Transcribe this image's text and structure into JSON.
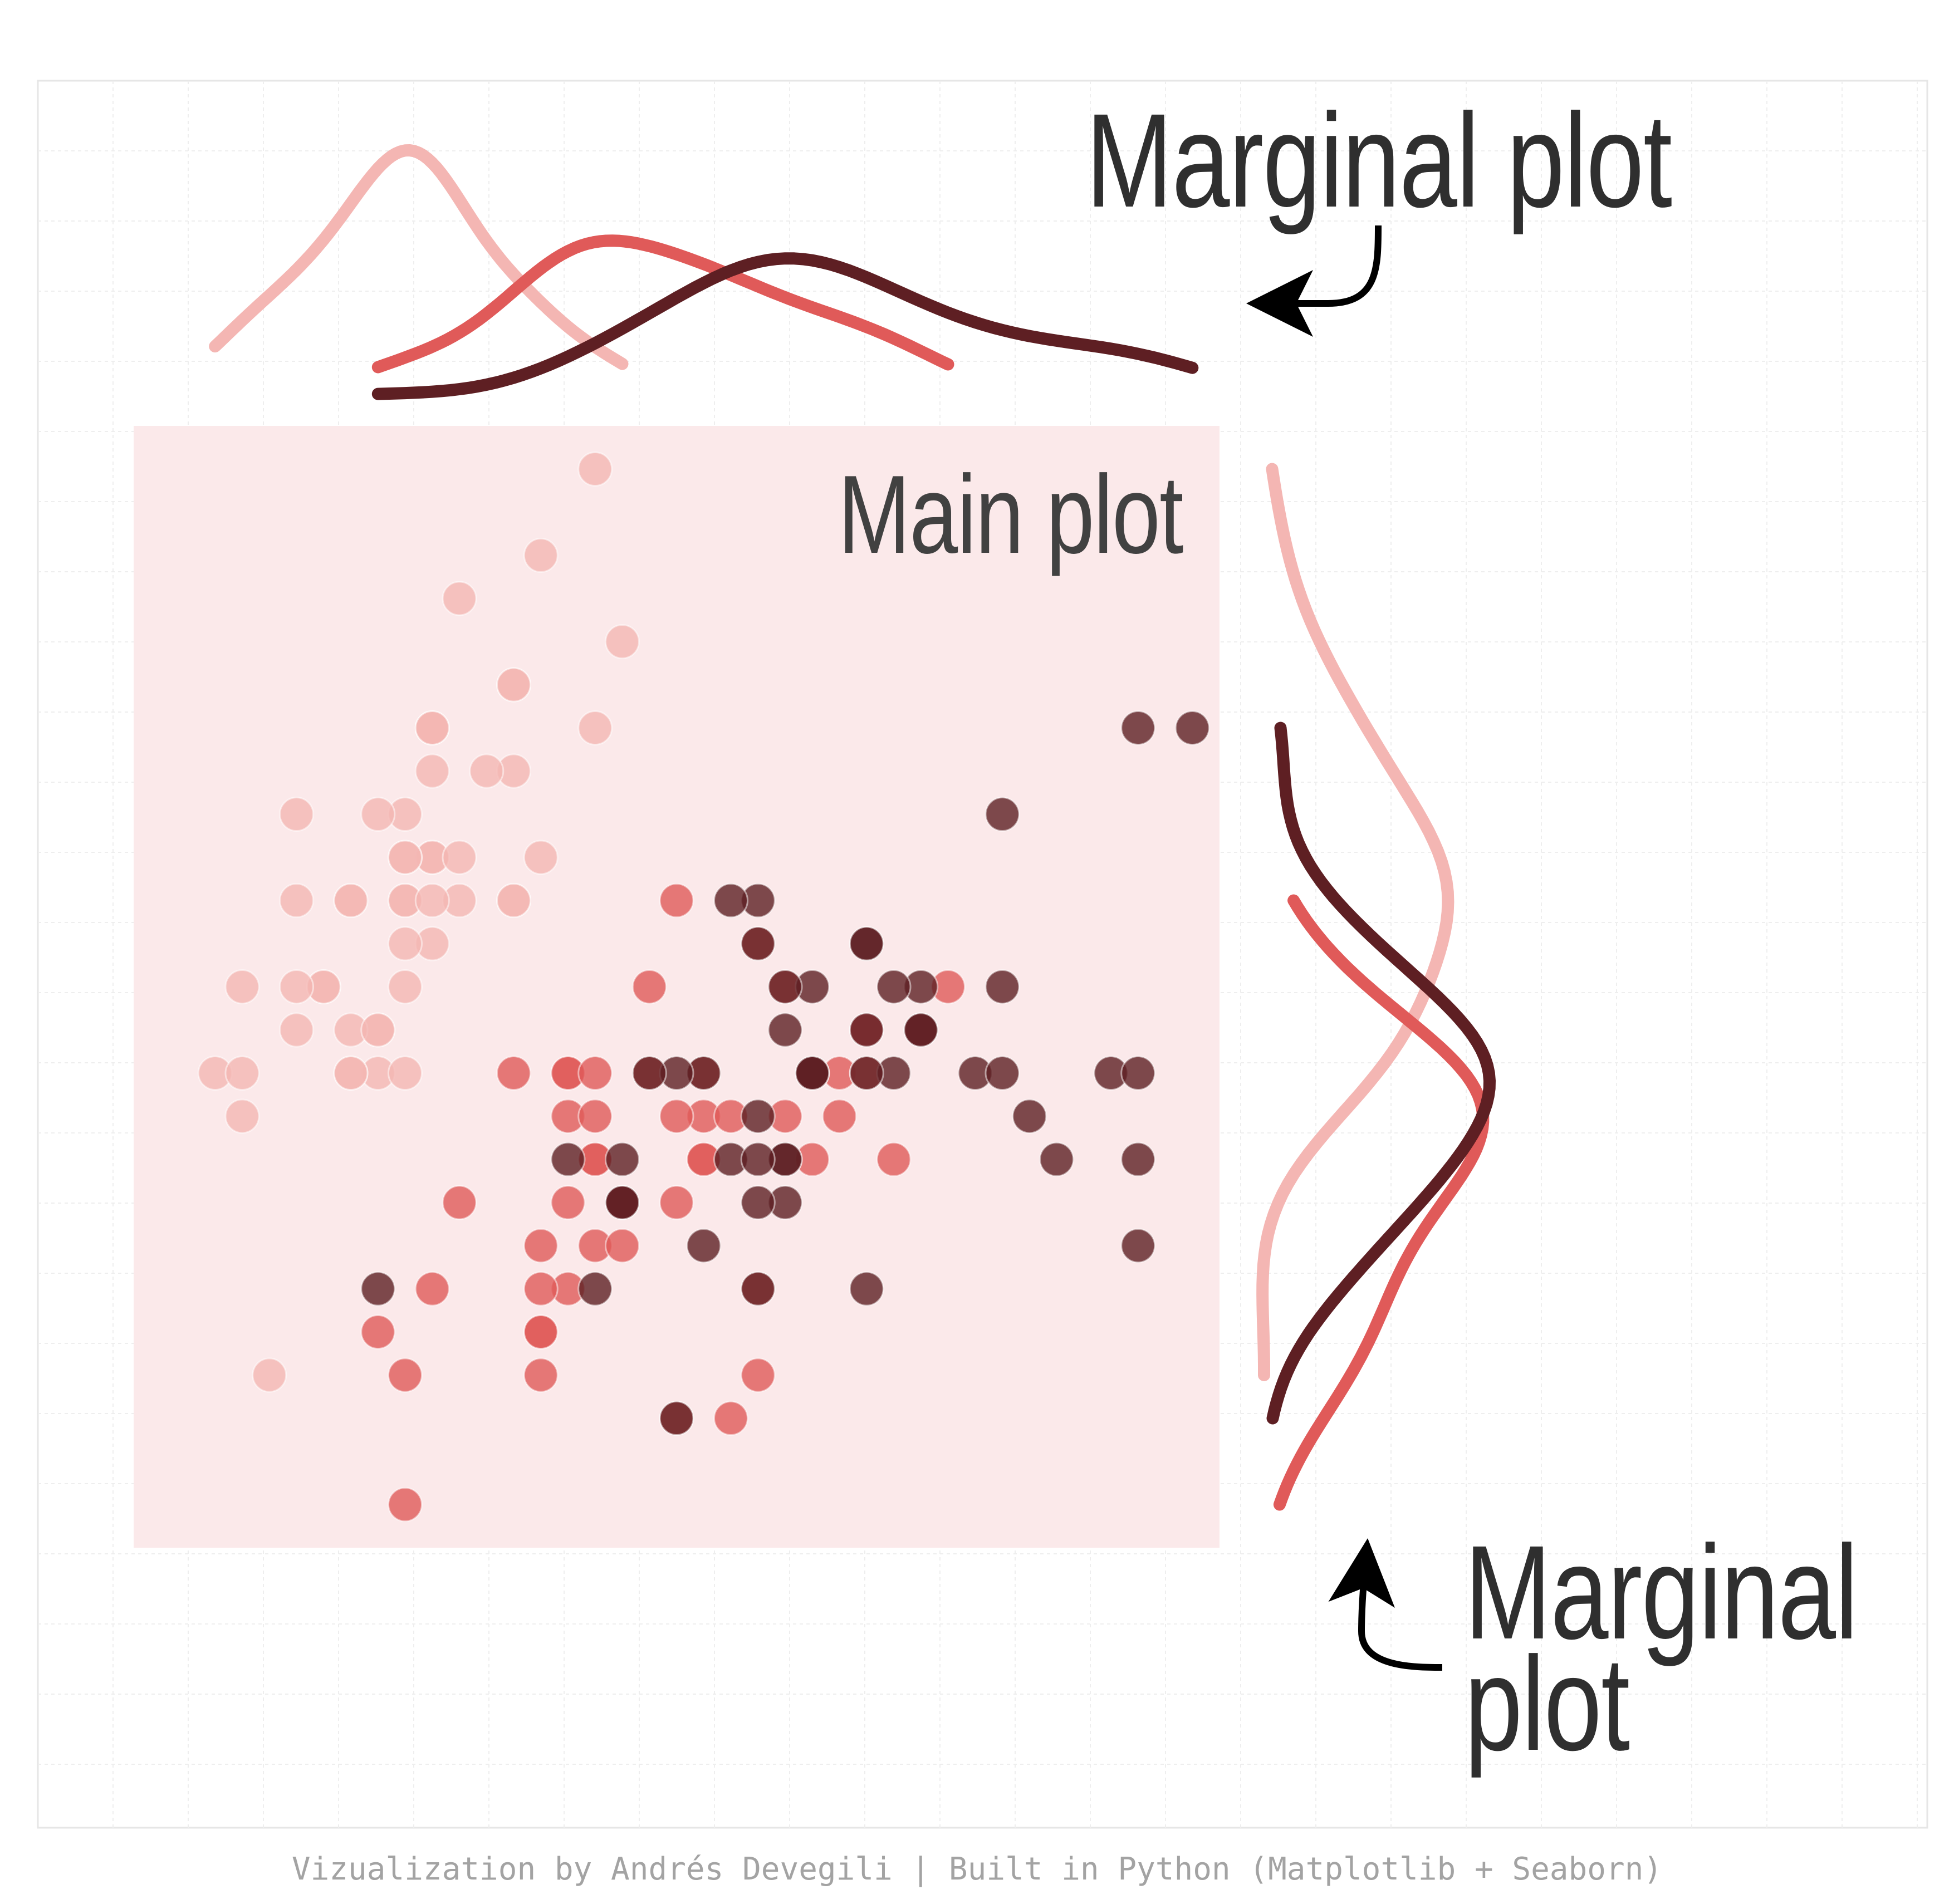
{
  "annotations": {
    "main_plot": "Main plot",
    "top_marginal": "Marginal plot",
    "right_marginal": "Marginal plot"
  },
  "credit": "Vizualization by Andrés Devegili | Built in Python (Matplotlib + Seaborn)",
  "colors": {
    "background": "#ffffff",
    "grid": "#e6e6e6",
    "main_panel": "#fbe9ea",
    "series_light": "#f4b6b3",
    "series_medium": "#e05a59",
    "series_dark": "#5e1f23",
    "arrow": "#000000"
  },
  "icons": [
    "curved-arrow-icon"
  ],
  "chart_data": {
    "type": "scatter",
    "grid": true,
    "xlim": [
      4.0,
      8.0
    ],
    "ylim": [
      1.9,
      4.5
    ],
    "series": [
      {
        "color": "#f4b6b3",
        "points": [
          [
            5.1,
            3.5
          ],
          [
            4.9,
            3.0
          ],
          [
            4.7,
            3.2
          ],
          [
            4.6,
            3.1
          ],
          [
            5.0,
            3.6
          ],
          [
            5.4,
            3.9
          ],
          [
            4.6,
            3.4
          ],
          [
            5.0,
            3.4
          ],
          [
            4.4,
            2.9
          ],
          [
            4.9,
            3.1
          ],
          [
            5.4,
            3.7
          ],
          [
            4.8,
            3.4
          ],
          [
            4.8,
            3.0
          ],
          [
            4.3,
            3.0
          ],
          [
            5.8,
            4.0
          ],
          [
            5.7,
            4.4
          ],
          [
            5.4,
            3.9
          ],
          [
            5.1,
            3.5
          ],
          [
            5.7,
            3.8
          ],
          [
            5.1,
            3.8
          ],
          [
            5.4,
            3.4
          ],
          [
            5.1,
            3.7
          ],
          [
            4.6,
            3.6
          ],
          [
            5.1,
            3.3
          ],
          [
            4.8,
            3.4
          ],
          [
            5.0,
            3.0
          ],
          [
            5.0,
            3.4
          ],
          [
            5.2,
            3.5
          ],
          [
            5.2,
            3.4
          ],
          [
            4.7,
            3.2
          ],
          [
            4.8,
            3.1
          ],
          [
            5.4,
            3.4
          ],
          [
            5.2,
            4.1
          ],
          [
            5.5,
            4.2
          ],
          [
            4.9,
            3.1
          ],
          [
            5.0,
            3.2
          ],
          [
            5.5,
            3.5
          ],
          [
            4.9,
            3.6
          ],
          [
            4.4,
            3.0
          ],
          [
            5.1,
            3.4
          ],
          [
            5.0,
            3.5
          ],
          [
            4.5,
            2.3
          ],
          [
            4.4,
            3.2
          ],
          [
            5.0,
            3.5
          ],
          [
            5.1,
            3.8
          ],
          [
            4.8,
            3.0
          ],
          [
            5.1,
            3.8
          ],
          [
            4.6,
            3.2
          ],
          [
            5.3,
            3.7
          ],
          [
            5.0,
            3.3
          ]
        ]
      },
      {
        "color": "#e05a59",
        "points": [
          [
            7.0,
            3.2
          ],
          [
            6.4,
            3.2
          ],
          [
            6.9,
            3.1
          ],
          [
            5.5,
            2.3
          ],
          [
            6.5,
            2.8
          ],
          [
            5.7,
            2.8
          ],
          [
            6.3,
            3.3
          ],
          [
            4.9,
            2.4
          ],
          [
            6.6,
            2.9
          ],
          [
            5.2,
            2.7
          ],
          [
            5.0,
            2.0
          ],
          [
            5.9,
            3.0
          ],
          [
            6.0,
            2.2
          ],
          [
            6.1,
            2.9
          ],
          [
            5.6,
            2.9
          ],
          [
            6.7,
            3.1
          ],
          [
            5.6,
            3.0
          ],
          [
            5.8,
            2.7
          ],
          [
            6.2,
            2.2
          ],
          [
            5.6,
            2.5
          ],
          [
            5.9,
            3.2
          ],
          [
            6.1,
            2.8
          ],
          [
            6.3,
            2.5
          ],
          [
            6.1,
            2.8
          ],
          [
            6.4,
            2.9
          ],
          [
            6.6,
            3.0
          ],
          [
            6.8,
            2.8
          ],
          [
            6.7,
            3.0
          ],
          [
            6.0,
            2.9
          ],
          [
            5.7,
            2.6
          ],
          [
            5.5,
            2.4
          ],
          [
            5.5,
            2.4
          ],
          [
            5.8,
            2.7
          ],
          [
            6.0,
            2.7
          ],
          [
            5.4,
            3.0
          ],
          [
            6.0,
            3.4
          ],
          [
            6.7,
            3.1
          ],
          [
            6.3,
            2.3
          ],
          [
            5.6,
            3.0
          ],
          [
            5.5,
            2.5
          ],
          [
            5.5,
            2.6
          ],
          [
            6.1,
            3.0
          ],
          [
            5.8,
            2.6
          ],
          [
            5.0,
            2.3
          ],
          [
            5.6,
            2.7
          ],
          [
            5.7,
            3.0
          ],
          [
            5.7,
            2.9
          ],
          [
            6.2,
            2.9
          ],
          [
            5.1,
            2.5
          ],
          [
            5.7,
            2.8
          ]
        ]
      },
      {
        "color": "#5e1f23",
        "points": [
          [
            6.3,
            3.3
          ],
          [
            5.8,
            2.7
          ],
          [
            7.1,
            3.0
          ],
          [
            6.3,
            2.9
          ],
          [
            6.5,
            3.0
          ],
          [
            7.6,
            3.0
          ],
          [
            4.9,
            2.5
          ],
          [
            7.3,
            2.9
          ],
          [
            6.7,
            2.5
          ],
          [
            7.2,
            3.6
          ],
          [
            6.5,
            3.2
          ],
          [
            6.4,
            2.7
          ],
          [
            6.8,
            3.0
          ],
          [
            5.7,
            2.5
          ],
          [
            5.8,
            2.8
          ],
          [
            6.4,
            3.2
          ],
          [
            6.5,
            3.0
          ],
          [
            7.7,
            3.8
          ],
          [
            7.7,
            2.6
          ],
          [
            6.0,
            2.2
          ],
          [
            6.9,
            3.2
          ],
          [
            5.6,
            2.8
          ],
          [
            7.7,
            2.8
          ],
          [
            6.3,
            2.7
          ],
          [
            6.7,
            3.3
          ],
          [
            7.2,
            3.2
          ],
          [
            6.2,
            2.8
          ],
          [
            6.1,
            3.0
          ],
          [
            6.4,
            2.8
          ],
          [
            7.2,
            3.0
          ],
          [
            7.4,
            2.8
          ],
          [
            7.9,
            3.8
          ],
          [
            6.4,
            2.8
          ],
          [
            6.3,
            2.8
          ],
          [
            6.1,
            2.6
          ],
          [
            7.7,
            3.0
          ],
          [
            6.3,
            3.4
          ],
          [
            6.4,
            3.1
          ],
          [
            6.0,
            3.0
          ],
          [
            6.9,
            3.1
          ],
          [
            6.7,
            3.1
          ],
          [
            6.9,
            3.1
          ],
          [
            5.8,
            2.7
          ],
          [
            6.8,
            3.2
          ],
          [
            6.7,
            3.3
          ],
          [
            6.7,
            3.0
          ],
          [
            6.3,
            2.5
          ],
          [
            6.5,
            3.0
          ],
          [
            6.2,
            3.4
          ],
          [
            5.9,
            3.0
          ]
        ]
      }
    ]
  }
}
